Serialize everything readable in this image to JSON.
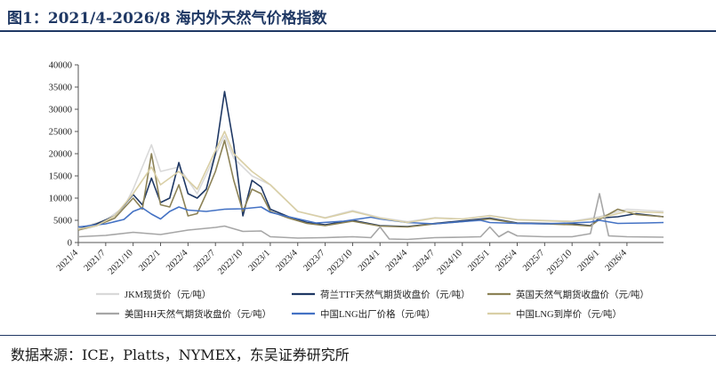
{
  "figure": {
    "title": "图1：2021/4-2026/8 海内外天然气价格指数",
    "source": "数据来源：ICE，Platts，NYMEX，东吴证券研究所"
  },
  "chart_data": {
    "type": "line",
    "ylim": [
      0,
      40000
    ],
    "yticks": [
      0,
      5000,
      10000,
      15000,
      20000,
      25000,
      30000,
      35000,
      40000
    ],
    "xlim": [
      "2021-04",
      "2026-08"
    ],
    "xticks": [
      "2021/4",
      "2021/7",
      "2021/10",
      "2022/1",
      "2022/4",
      "2022/7",
      "2022/10",
      "2023/1",
      "2023/4",
      "2023/7",
      "2023/10",
      "2024/1",
      "2024/4",
      "2024/7",
      "2024/10",
      "2025/1",
      "2025/4",
      "2025/7",
      "2025/10",
      "2026/1",
      "2026/4"
    ],
    "grid": false,
    "legend_position": "bottom",
    "series": [
      {
        "name": "JKM现货价（元/吨）",
        "color": "#d9d9d9",
        "x": [
          "2021-04",
          "2021-07",
          "2021-09",
          "2021-10",
          "2021-12",
          "2022-01",
          "2022-03",
          "2022-05",
          "2022-08",
          "2022-09",
          "2022-11",
          "2023-01",
          "2023-04",
          "2023-07",
          "2023-10",
          "2024-01",
          "2024-04",
          "2024-07",
          "2024-10",
          "2025-01",
          "2025-04",
          "2025-07",
          "2025-10",
          "2026-01",
          "2026-04",
          "2026-08"
        ],
        "y": [
          3200,
          5000,
          8000,
          12000,
          22000,
          16000,
          17000,
          11000,
          24000,
          19000,
          15000,
          13000,
          7000,
          5600,
          7200,
          5600,
          4700,
          5600,
          5300,
          6100,
          5200,
          5000,
          4800,
          5800,
          7500,
          7000
        ]
      },
      {
        "name": "荷兰TTF天然气期货收盘价（元/吨）",
        "color": "#1f3864",
        "x": [
          "2021-04",
          "2021-06",
          "2021-08",
          "2021-10",
          "2021-11",
          "2021-12",
          "2022-01",
          "2022-02",
          "2022-03",
          "2022-04",
          "2022-05",
          "2022-06",
          "2022-07",
          "2022-08",
          "2022-09",
          "2022-10",
          "2022-11",
          "2022-12",
          "2023-01",
          "2023-03",
          "2023-05",
          "2023-07",
          "2023-10",
          "2024-01",
          "2024-04",
          "2024-07",
          "2024-10",
          "2025-01",
          "2025-04",
          "2025-07",
          "2025-10",
          "2025-12",
          "2026-01",
          "2026-03",
          "2026-05",
          "2026-08"
        ],
        "y": [
          3000,
          4200,
          6000,
          10800,
          8500,
          14500,
          9000,
          10000,
          18000,
          11000,
          10000,
          12000,
          20000,
          34000,
          22000,
          6000,
          14000,
          12500,
          7500,
          5800,
          4500,
          4000,
          5000,
          3800,
          3600,
          4300,
          4900,
          5500,
          4400,
          4300,
          4200,
          3800,
          5500,
          5800,
          6500,
          5800
        ]
      },
      {
        "name": "英国天然气期货收盘价（元/吨）",
        "color": "#8c8256",
        "x": [
          "2021-04",
          "2021-06",
          "2021-08",
          "2021-10",
          "2021-11",
          "2021-12",
          "2022-01",
          "2022-02",
          "2022-03",
          "2022-04",
          "2022-05",
          "2022-06",
          "2022-07",
          "2022-08",
          "2022-09",
          "2022-10",
          "2022-11",
          "2022-12",
          "2023-01",
          "2023-03",
          "2023-05",
          "2023-07",
          "2023-10",
          "2024-01",
          "2024-04",
          "2024-07",
          "2024-10",
          "2025-01",
          "2025-04",
          "2025-07",
          "2025-10",
          "2025-12",
          "2026-01",
          "2026-03",
          "2026-05",
          "2026-08"
        ],
        "y": [
          2800,
          3800,
          5500,
          10000,
          7500,
          20000,
          8500,
          8000,
          13000,
          6000,
          6500,
          11000,
          16000,
          23000,
          14000,
          7000,
          12000,
          11000,
          7000,
          5500,
          4300,
          3800,
          4800,
          3700,
          3500,
          4200,
          4700,
          5300,
          4300,
          4200,
          4000,
          3700,
          5200,
          7500,
          6300,
          5800
        ]
      },
      {
        "name": "美国HH天然气期货收盘价（元/吨）",
        "color": "#a6a6a6",
        "x": [
          "2021-04",
          "2021-07",
          "2021-10",
          "2022-01",
          "2022-04",
          "2022-07",
          "2022-08",
          "2022-10",
          "2022-12",
          "2023-01",
          "2023-04",
          "2023-07",
          "2023-10",
          "2023-12",
          "2024-01",
          "2024-02",
          "2024-04",
          "2024-07",
          "2024-10",
          "2024-12",
          "2025-01",
          "2025-02",
          "2025-03",
          "2025-04",
          "2025-07",
          "2025-10",
          "2025-12",
          "2026-01",
          "2026-02",
          "2026-04",
          "2026-08"
        ],
        "y": [
          1300,
          1600,
          2300,
          1800,
          2800,
          3400,
          3700,
          2500,
          2600,
          1300,
          1000,
          1100,
          1300,
          1100,
          3500,
          800,
          700,
          1100,
          1200,
          1300,
          3500,
          1300,
          2500,
          1500,
          1300,
          1300,
          2000,
          11000,
          1500,
          1300,
          1200
        ]
      },
      {
        "name": "中国LNG出厂价格（元/吨）",
        "color": "#4472c4",
        "x": [
          "2021-04",
          "2021-07",
          "2021-09",
          "2021-10",
          "2021-11",
          "2021-12",
          "2022-01",
          "2022-02",
          "2022-03",
          "2022-04",
          "2022-06",
          "2022-08",
          "2022-10",
          "2022-12",
          "2023-01",
          "2023-03",
          "2023-06",
          "2023-09",
          "2023-12",
          "2024-01",
          "2024-04",
          "2024-07",
          "2024-10",
          "2024-12",
          "2025-01",
          "2025-04",
          "2025-07",
          "2025-10",
          "2025-12",
          "2026-01",
          "2026-03",
          "2026-06",
          "2026-08"
        ],
        "y": [
          3500,
          4200,
          5200,
          7000,
          7800,
          6400,
          5300,
          7000,
          8000,
          7300,
          7000,
          7500,
          7600,
          8000,
          6800,
          5800,
          4400,
          4800,
          5700,
          5300,
          4500,
          4200,
          4700,
          5000,
          4500,
          4300,
          4200,
          4400,
          4600,
          5000,
          4300,
          4400,
          4500
        ]
      },
      {
        "name": "中国LNG到岸价（元/吨）",
        "color": "#d9cfa6",
        "x": [
          "2021-04",
          "2021-06",
          "2021-08",
          "2021-10",
          "2021-12",
          "2022-01",
          "2022-03",
          "2022-05",
          "2022-08",
          "2022-09",
          "2022-11",
          "2023-01",
          "2023-04",
          "2023-07",
          "2023-10",
          "2024-01",
          "2024-04",
          "2024-07",
          "2024-10",
          "2025-01",
          "2025-04",
          "2025-07",
          "2025-10",
          "2026-01",
          "2026-04",
          "2026-08"
        ],
        "y": [
          3000,
          3800,
          6000,
          11000,
          17000,
          13000,
          16000,
          12000,
          25000,
          20000,
          16000,
          13000,
          7000,
          5500,
          7000,
          5500,
          4500,
          5500,
          5300,
          6000,
          5100,
          4900,
          4700,
          5500,
          7000,
          6700
        ]
      }
    ]
  }
}
